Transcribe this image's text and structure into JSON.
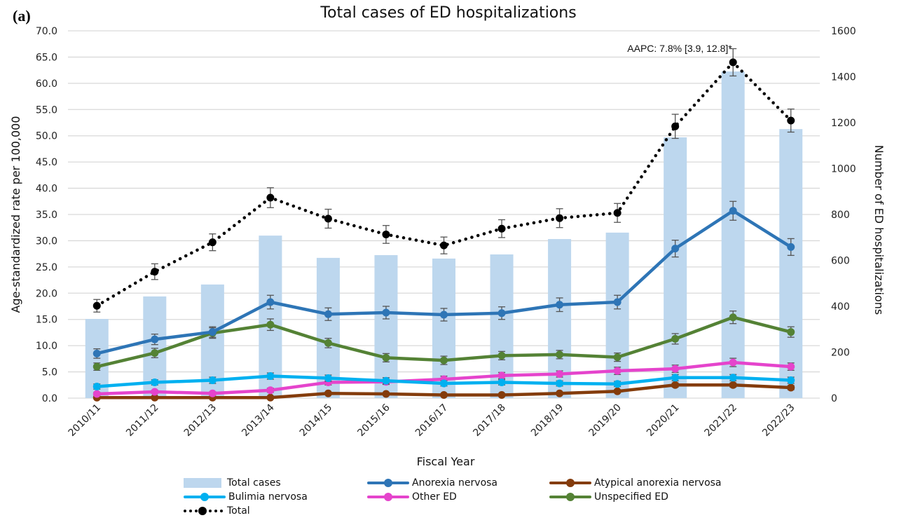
{
  "panel_label": "(a)",
  "chart_data": {
    "type": "bar+line",
    "title": "Total cases of ED hospitalizations",
    "xlabel": "Fiscal Year",
    "ylabel_left": "Age-standardized rate per 100,000",
    "ylabel_right": "Number of  ED hospitalizations",
    "ylim_left": [
      0,
      70
    ],
    "ylim_right": [
      0,
      1600
    ],
    "yticks_left": [
      "0.0",
      "5.0",
      "10.0",
      "15.0",
      "20.0",
      "25.0",
      "30.0",
      "35.0",
      "40.0",
      "45.0",
      "50.0",
      "55.0",
      "60.0",
      "65.0",
      "70.0"
    ],
    "yticks_right": [
      "0",
      "200",
      "400",
      "600",
      "800",
      "1000",
      "1200",
      "1400",
      "1600"
    ],
    "grid": true,
    "legend_position": "bottom",
    "categories": [
      "2010/11",
      "2011/12",
      "2012/13",
      "2013/14",
      "2014/15",
      "2015/16",
      "2016/17",
      "2017/18",
      "2018/19",
      "2019/20",
      "2020/21",
      "2021/22",
      "2022/23"
    ],
    "bars": {
      "name": "Total cases",
      "axis": "right",
      "color": "#bdd7ee",
      "values": [
        345,
        443,
        495,
        708,
        611,
        623,
        608,
        626,
        693,
        721,
        1136,
        1423,
        1172
      ]
    },
    "series": [
      {
        "name": "Anorexia nervosa",
        "axis": "left",
        "color": "#2e75b6",
        "style": "solid",
        "values": [
          8.5,
          11.2,
          12.6,
          18.3,
          16.0,
          16.3,
          15.9,
          16.2,
          17.8,
          18.3,
          28.5,
          35.7,
          28.8
        ],
        "error": [
          0.9,
          1.0,
          1.0,
          1.3,
          1.2,
          1.2,
          1.2,
          1.2,
          1.3,
          1.3,
          1.6,
          1.8,
          1.6
        ]
      },
      {
        "name": "Atypical anorexia nervosa",
        "axis": "left",
        "color": "#843c0c",
        "style": "solid",
        "values": [
          0.1,
          0.1,
          0.1,
          0.1,
          0.9,
          0.8,
          0.6,
          0.6,
          0.9,
          1.3,
          2.5,
          2.5,
          2.0
        ],
        "error": [
          0.1,
          0.1,
          0.1,
          0.1,
          0.2,
          0.2,
          0.2,
          0.2,
          0.2,
          0.3,
          0.4,
          0.4,
          0.4
        ]
      },
      {
        "name": "Bulimia nervosa",
        "axis": "left",
        "color": "#00b0f0",
        "style": "solid",
        "values": [
          2.2,
          3.0,
          3.4,
          4.2,
          3.8,
          3.3,
          2.8,
          3.0,
          2.8,
          2.7,
          3.9,
          3.9,
          3.4
        ],
        "error": [
          0.5,
          0.5,
          0.6,
          0.6,
          0.6,
          0.6,
          0.5,
          0.5,
          0.5,
          0.5,
          0.6,
          0.6,
          0.6
        ]
      },
      {
        "name": "Other ED",
        "axis": "left",
        "color": "#e544cc",
        "style": "solid",
        "values": [
          0.8,
          1.2,
          0.9,
          1.5,
          3.0,
          3.1,
          3.6,
          4.3,
          4.6,
          5.2,
          5.6,
          6.8,
          6.0
        ],
        "error": [
          0.3,
          0.3,
          0.3,
          0.4,
          0.5,
          0.5,
          0.6,
          0.6,
          0.6,
          0.7,
          0.7,
          0.8,
          0.7
        ]
      },
      {
        "name": "Unspecified ED",
        "axis": "left",
        "color": "#548235",
        "style": "solid",
        "values": [
          6.0,
          8.6,
          12.4,
          14.0,
          10.5,
          7.7,
          7.2,
          8.1,
          8.3,
          7.8,
          11.3,
          15.4,
          12.6
        ],
        "error": [
          0.7,
          0.9,
          1.0,
          1.1,
          0.9,
          0.8,
          0.8,
          0.8,
          0.8,
          0.8,
          1.0,
          1.2,
          1.0
        ]
      },
      {
        "name": "Total",
        "axis": "left",
        "color": "#000000",
        "style": "dotted",
        "values": [
          17.6,
          24.1,
          29.7,
          38.2,
          34.2,
          31.2,
          29.1,
          32.3,
          34.3,
          35.3,
          51.8,
          64.0,
          52.9
        ],
        "error": [
          1.2,
          1.5,
          1.6,
          1.9,
          1.8,
          1.7,
          1.6,
          1.7,
          1.8,
          1.8,
          2.3,
          2.6,
          2.2
        ]
      }
    ],
    "annotations": [
      {
        "text": "AAPC: 7.8% [3.9, 12.8]*",
        "near_category": "2021/22",
        "series": "Total"
      }
    ]
  },
  "legend": [
    {
      "label": "Total cases",
      "kind": "bar",
      "color": "#bdd7ee"
    },
    {
      "label": "Anorexia nervosa",
      "kind": "line",
      "color": "#2e75b6"
    },
    {
      "label": "Atypical anorexia nervosa",
      "kind": "line",
      "color": "#843c0c"
    },
    {
      "label": "Bulimia nervosa",
      "kind": "line",
      "color": "#00b0f0"
    },
    {
      "label": "Other ED",
      "kind": "line",
      "color": "#e544cc"
    },
    {
      "label": "Unspecified ED",
      "kind": "line",
      "color": "#548235"
    },
    {
      "label": "Total",
      "kind": "dotted",
      "color": "#000000"
    }
  ]
}
